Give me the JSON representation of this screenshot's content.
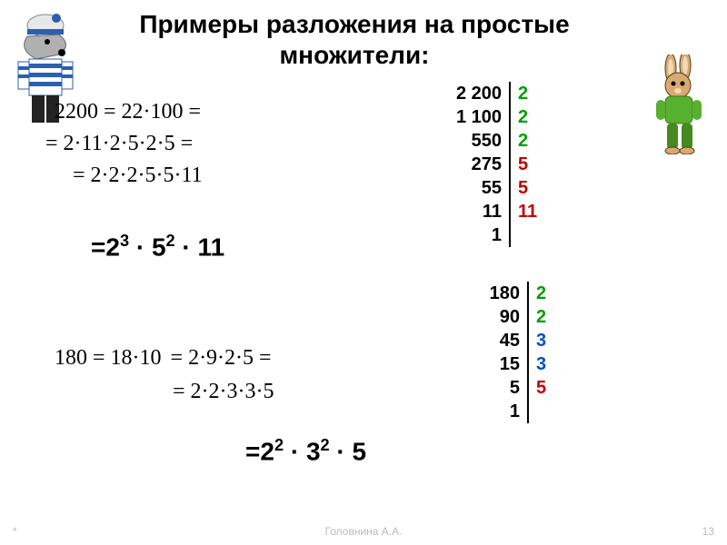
{
  "title": "Примеры разложения на простые множители:",
  "eq1": {
    "line1": "2200 = 22·100 =",
    "line2": "= 2·11·2·5·2·5 =",
    "line3": "= 2·2·2·5·5·11"
  },
  "result1": {
    "prefix": "=2",
    "exp1": "3",
    "mid1": " · 5",
    "exp2": "2",
    "tail": " · 11"
  },
  "eq2": {
    "part1": "180 = 18·10",
    "part2": "= 2·9·2·5 =",
    "line2": "= 2·2·3·3·5"
  },
  "result2": {
    "prefix": "=2",
    "exp1": "2",
    "mid1": " · 3",
    "exp2": "2",
    "tail": " · 5"
  },
  "table1": {
    "rows": [
      {
        "l": "2 200",
        "r": "2",
        "color": "c-green"
      },
      {
        "l": "1 100",
        "r": "2",
        "color": "c-green"
      },
      {
        "l": "550",
        "r": "2",
        "color": "c-green"
      },
      {
        "l": "275",
        "r": "5",
        "color": "c-red"
      },
      {
        "l": "55",
        "r": "5",
        "color": "c-red"
      },
      {
        "l": "11",
        "r": "11",
        "color": "c-red"
      },
      {
        "l": "1",
        "r": "",
        "color": ""
      }
    ]
  },
  "table2": {
    "rows": [
      {
        "l": "180",
        "r": "2",
        "color": "c-green"
      },
      {
        "l": "90",
        "r": "2",
        "color": "c-green"
      },
      {
        "l": "45",
        "r": "3",
        "color": "c-blue"
      },
      {
        "l": "15",
        "r": "3",
        "color": "c-blue"
      },
      {
        "l": "5",
        "r": "5",
        "color": "c-red"
      },
      {
        "l": "1",
        "r": "",
        "color": ""
      }
    ]
  },
  "footer": "Головнина А.А.",
  "pagenum": "13",
  "star": "*",
  "wolf": {
    "hat_fill": "#e8e8e8",
    "hat_band": "#2a60b0",
    "face_fill": "#b0b0b0",
    "nose_fill": "#000000",
    "shirt_stripe": "#2a60b0",
    "pants_fill": "#222222"
  },
  "rabbit": {
    "body_fill": "#d8aa70",
    "ear_inner": "#f2d8b8",
    "shirt_fill": "#58b030",
    "pants_fill": "#47891f",
    "outline": "#5a3c18"
  }
}
